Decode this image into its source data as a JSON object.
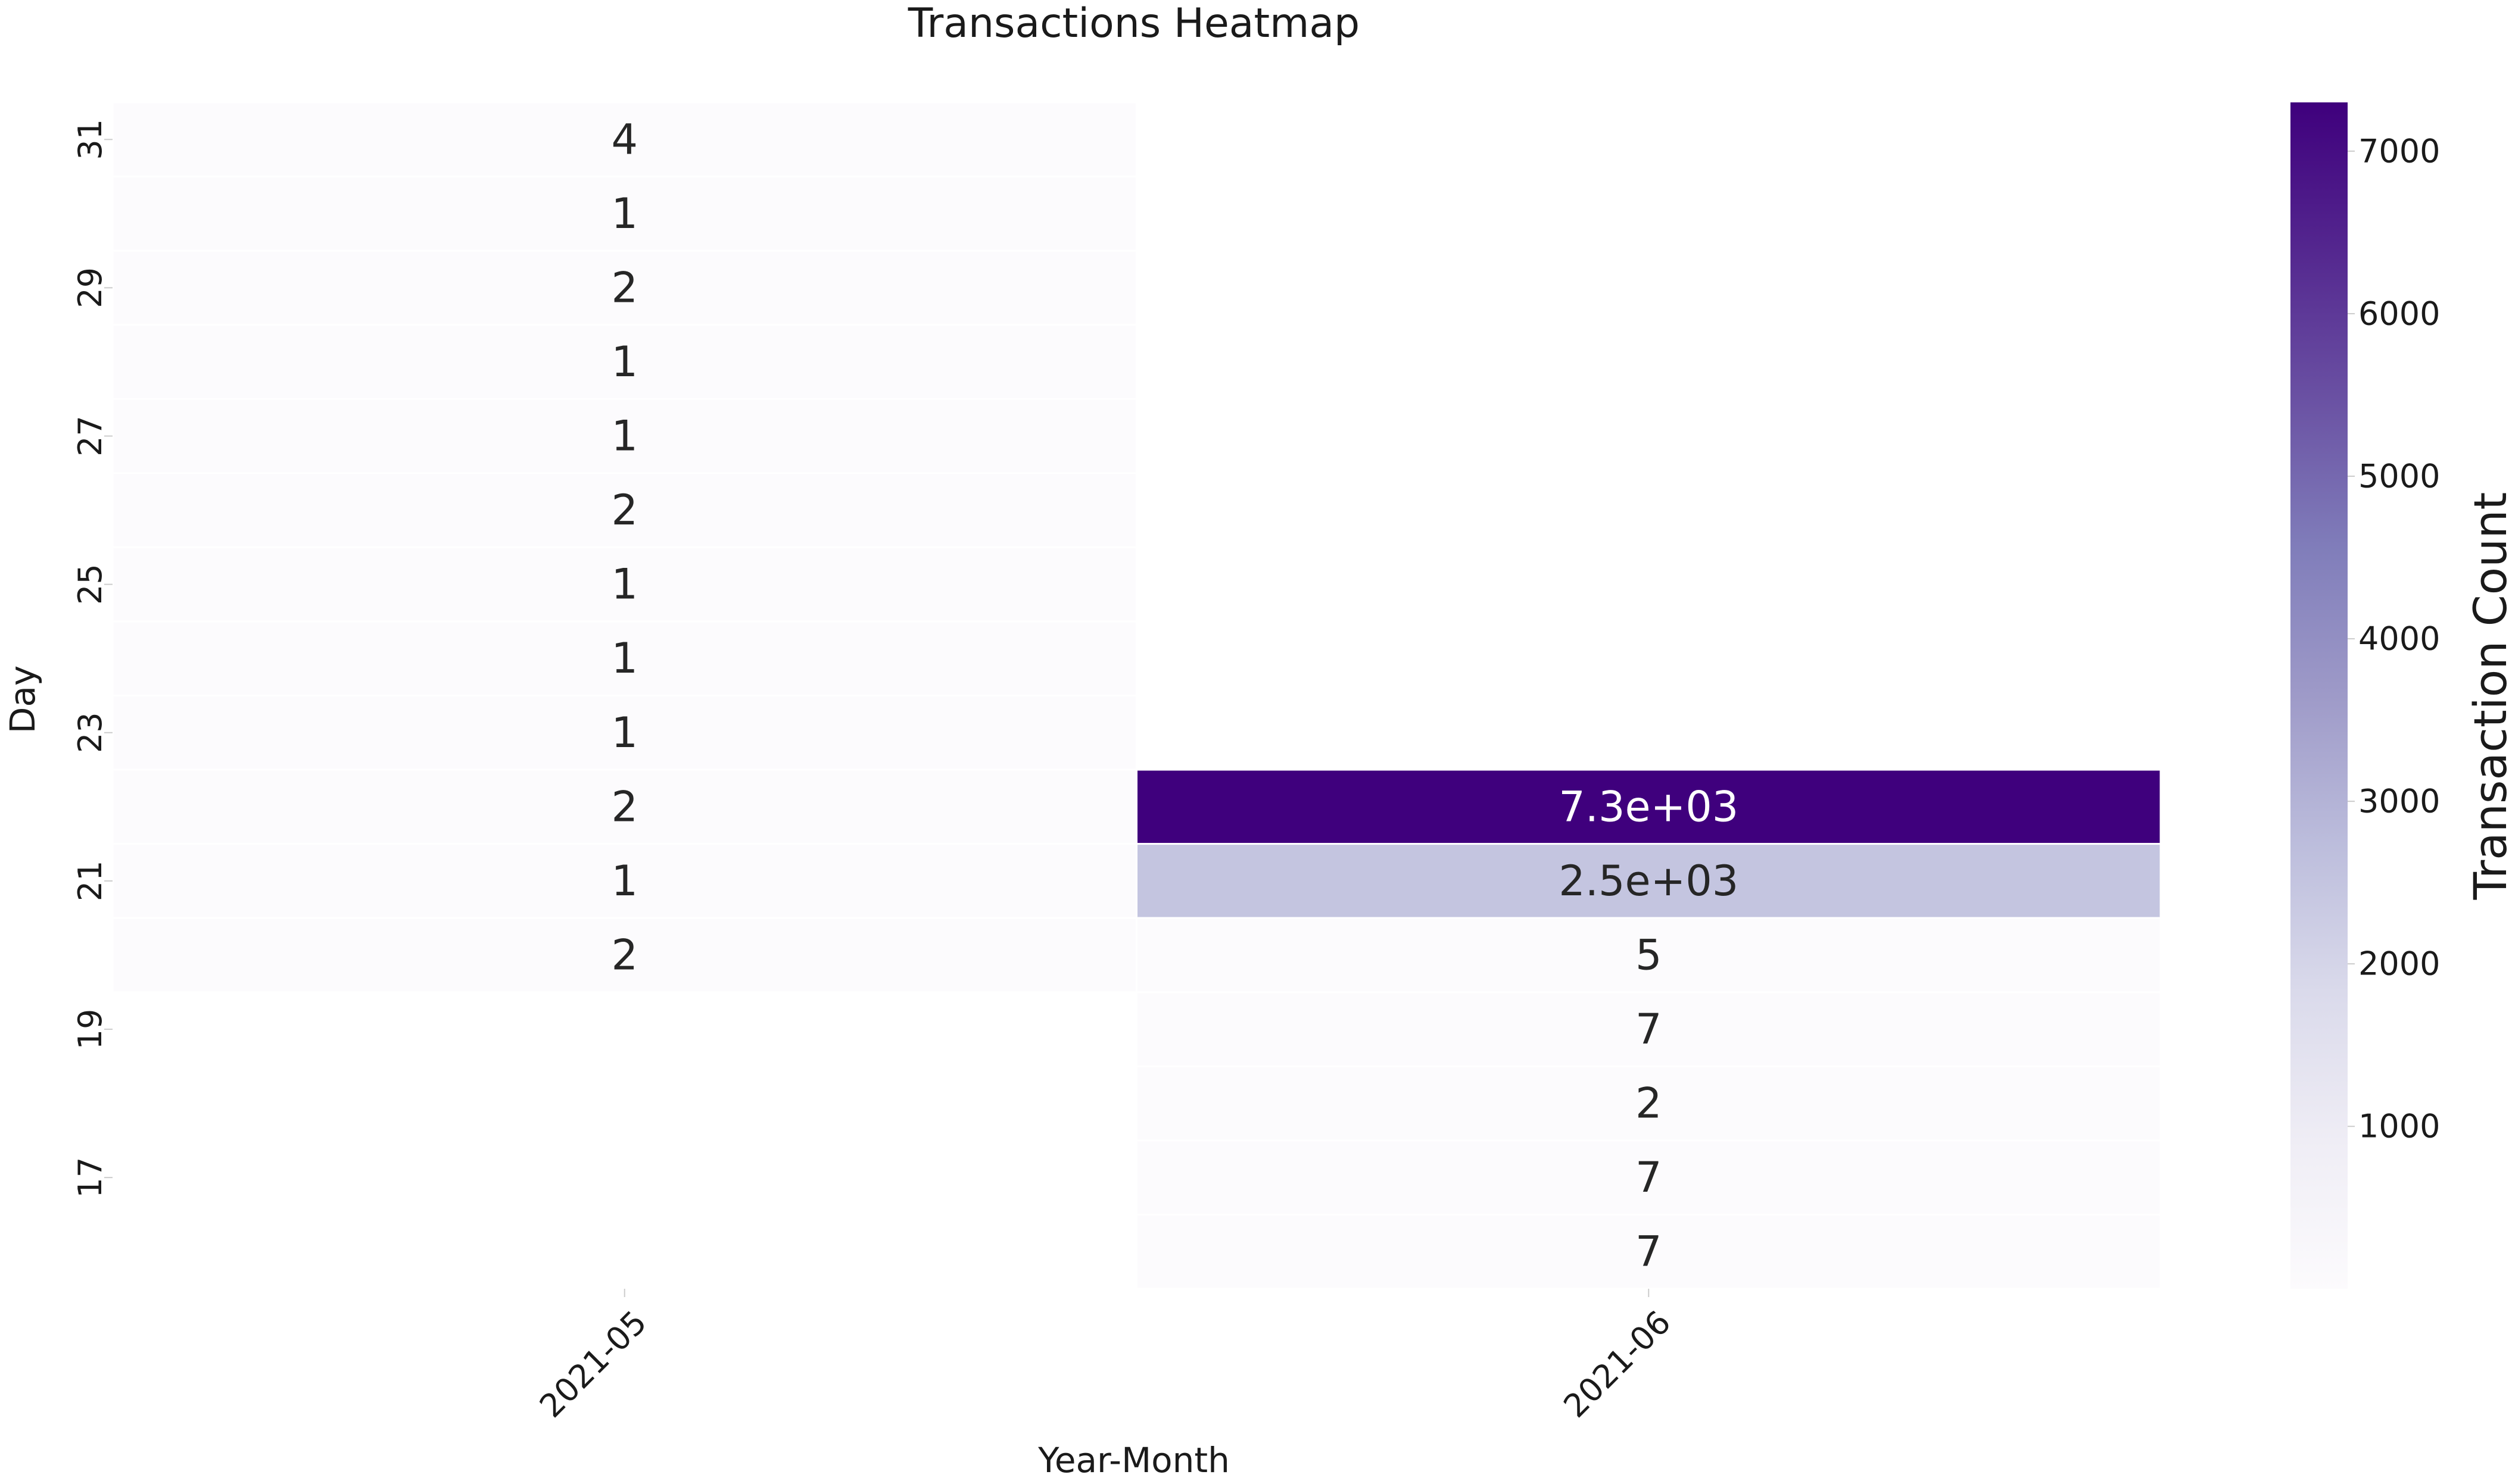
{
  "chart_data": {
    "type": "heatmap",
    "title": "Transactions Heatmap",
    "xlabel": "Year-Month",
    "ylabel": "Day",
    "x_categories": [
      "2021-05",
      "2021-06"
    ],
    "y_categories": [
      31,
      30,
      29,
      28,
      27,
      26,
      25,
      24,
      23,
      22,
      21,
      20,
      19,
      18,
      17,
      16
    ],
    "y_tick_labels": [
      "31",
      "29",
      "27",
      "25",
      "23",
      "21",
      "19",
      "17"
    ],
    "cells": [
      {
        "x": "2021-05",
        "y": 31,
        "value": 4,
        "label": "4"
      },
      {
        "x": "2021-05",
        "y": 30,
        "value": 1,
        "label": "1"
      },
      {
        "x": "2021-05",
        "y": 29,
        "value": 2,
        "label": "2"
      },
      {
        "x": "2021-05",
        "y": 28,
        "value": 1,
        "label": "1"
      },
      {
        "x": "2021-05",
        "y": 27,
        "value": 1,
        "label": "1"
      },
      {
        "x": "2021-05",
        "y": 26,
        "value": 2,
        "label": "2"
      },
      {
        "x": "2021-05",
        "y": 25,
        "value": 1,
        "label": "1"
      },
      {
        "x": "2021-05",
        "y": 24,
        "value": 1,
        "label": "1"
      },
      {
        "x": "2021-05",
        "y": 23,
        "value": 1,
        "label": "1"
      },
      {
        "x": "2021-05",
        "y": 22,
        "value": 2,
        "label": "2"
      },
      {
        "x": "2021-05",
        "y": 21,
        "value": 1,
        "label": "1"
      },
      {
        "x": "2021-05",
        "y": 20,
        "value": 2,
        "label": "2"
      },
      {
        "x": "2021-06",
        "y": 22,
        "value": 7300,
        "label": "7.3e+03"
      },
      {
        "x": "2021-06",
        "y": 21,
        "value": 2500,
        "label": "2.5e+03"
      },
      {
        "x": "2021-06",
        "y": 20,
        "value": 5,
        "label": "5"
      },
      {
        "x": "2021-06",
        "y": 19,
        "value": 7,
        "label": "7"
      },
      {
        "x": "2021-06",
        "y": 18,
        "value": 2,
        "label": "2"
      },
      {
        "x": "2021-06",
        "y": 17,
        "value": 7,
        "label": "7"
      },
      {
        "x": "2021-06",
        "y": 16,
        "value": 7,
        "label": "7"
      }
    ],
    "colorbar": {
      "label": "Transaction Count",
      "colormap": "Purples",
      "range": [
        1,
        7300
      ],
      "ticks": [
        1000,
        2000,
        3000,
        4000,
        5000,
        6000,
        7000
      ],
      "tick_labels": [
        "1000",
        "2000",
        "3000",
        "4000",
        "5000",
        "6000",
        "7000"
      ]
    },
    "colors": {
      "low": "#fcfbfd",
      "high": "#3f007d"
    },
    "grid": false
  }
}
